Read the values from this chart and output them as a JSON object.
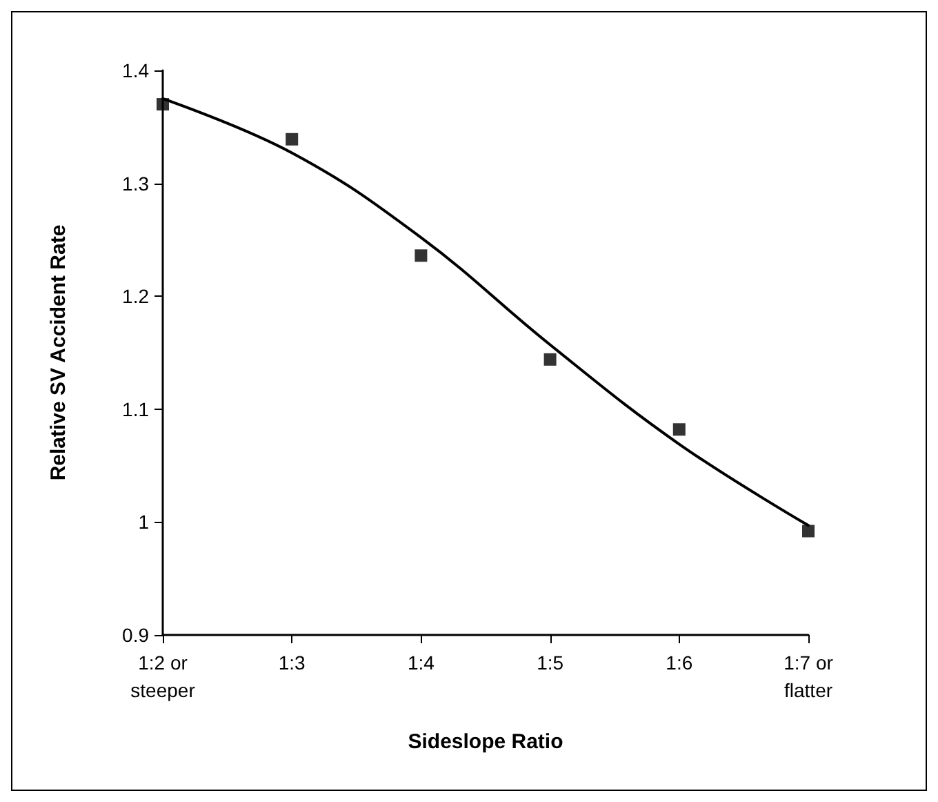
{
  "chart_data": {
    "type": "scatter",
    "xlabel": "Sideslope Ratio",
    "ylabel": "Relative SV Accident Rate",
    "categories": [
      "1:2 or\nsteeper",
      "1:3",
      "1:4",
      "1:5",
      "1:6",
      "1:7 or\nflatter"
    ],
    "series": [
      {
        "color": "#000000",
        "marker": "square",
        "values": [
          1.37,
          1.339,
          1.236,
          1.144,
          1.082,
          0.992
        ]
      },
      {
        "type": "line",
        "color": "#000000",
        "marker": "none",
        "line_style": "solid",
        "values": [
          1.375,
          1.327,
          1.252,
          1.157,
          1.069,
          0.997
        ]
      }
    ],
    "ylim": [
      0.9,
      1.4
    ],
    "yticks": [
      0.9,
      1,
      1.1,
      1.2,
      1.3,
      1.4
    ],
    "grid": false
  }
}
